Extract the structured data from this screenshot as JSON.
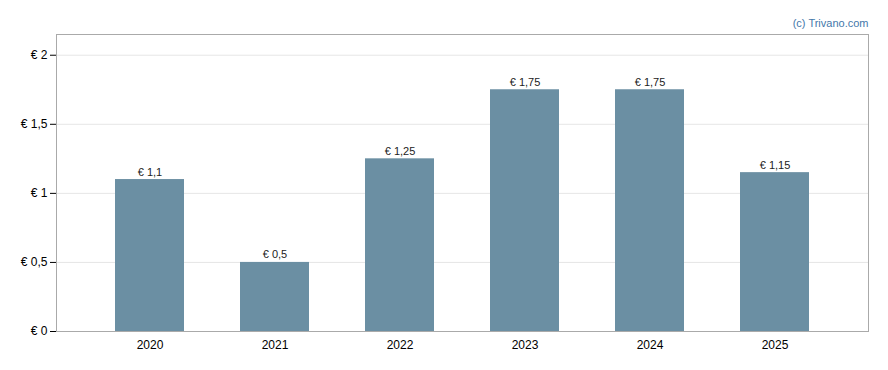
{
  "chart_data": {
    "type": "bar",
    "categories": [
      "2020",
      "2021",
      "2022",
      "2023",
      "2024",
      "2025"
    ],
    "values": [
      1.1,
      0.5,
      1.25,
      1.75,
      1.75,
      1.15
    ],
    "value_labels": [
      "€ 1,1",
      "€ 0,5",
      "€ 1,25",
      "€ 1,75",
      "€ 1,75",
      "€ 1,15"
    ],
    "color": "#6b8fa3",
    "ylim": [
      0,
      2.15
    ],
    "yticks": [
      {
        "value": 0,
        "label": "€ 0"
      },
      {
        "value": 0.5,
        "label": "€ 0,5"
      },
      {
        "value": 1.0,
        "label": "€ 1"
      },
      {
        "value": 1.5,
        "label": "€ 1,5"
      },
      {
        "value": 2.0,
        "label": "€ 2"
      }
    ],
    "grid": true,
    "data_labels": true,
    "annotations": [
      {
        "text": "(c) Trivano.com",
        "color": "#4477aa"
      }
    ]
  }
}
